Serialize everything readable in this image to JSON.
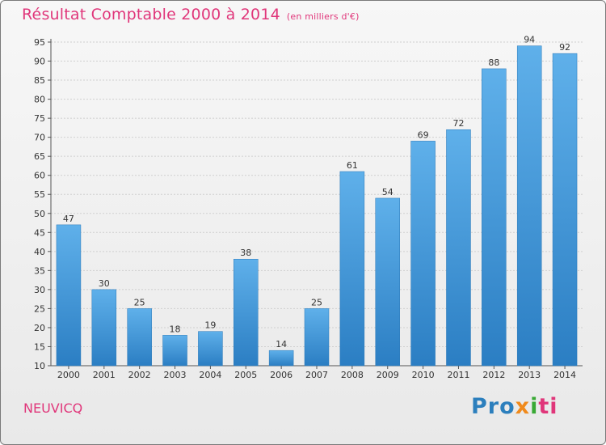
{
  "chart_data": {
    "type": "bar",
    "title": "Résultat Comptable 2000 à 2014",
    "subtitle": "(en milliers d'€)",
    "categories": [
      "2000",
      "2001",
      "2002",
      "2003",
      "2004",
      "2005",
      "2006",
      "2007",
      "2008",
      "2009",
      "2010",
      "2011",
      "2012",
      "2013",
      "2014"
    ],
    "values": [
      47,
      30,
      25,
      18,
      19,
      38,
      14,
      25,
      61,
      54,
      69,
      72,
      88,
      94,
      92
    ],
    "ylim": [
      10,
      95
    ],
    "yticks": [
      10,
      15,
      20,
      25,
      30,
      35,
      40,
      45,
      50,
      55,
      60,
      65,
      70,
      75,
      80,
      85,
      90,
      95
    ],
    "grid": true,
    "bar_color": "#4a9fe0"
  },
  "footer": {
    "place": "NEUVICQ",
    "logo_parts": [
      "Pro",
      "x",
      "i",
      "ti"
    ]
  }
}
